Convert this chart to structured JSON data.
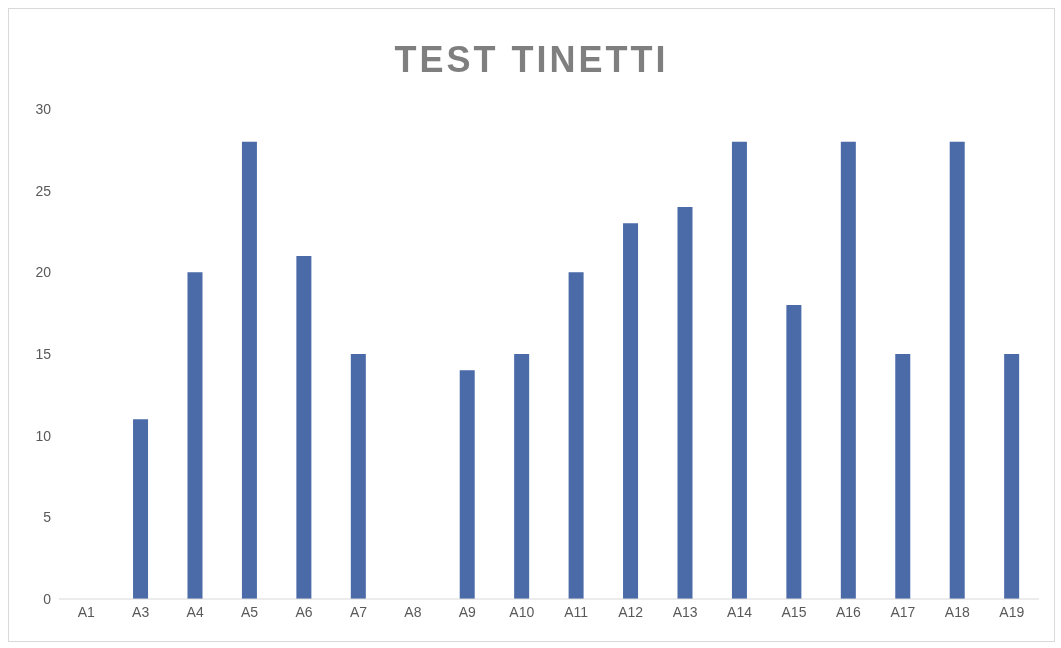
{
  "chart_data": {
    "type": "bar",
    "title": "TEST TINETTI",
    "categories": [
      "A1",
      "A3",
      "A4",
      "A5",
      "A6",
      "A7",
      "A8",
      "A9",
      "A10",
      "A11",
      "A12",
      "A13",
      "A14",
      "A15",
      "A16",
      "A17",
      "A18",
      "A19"
    ],
    "values": [
      0,
      11,
      20,
      28,
      21,
      15,
      0,
      14,
      15,
      20,
      23,
      24,
      28,
      18,
      28,
      15,
      28,
      15
    ],
    "color": "#4a6aa8",
    "ylim": [
      0,
      30
    ],
    "yticks": [
      0,
      5,
      10,
      15,
      20,
      25,
      30
    ],
    "grid": false
  }
}
